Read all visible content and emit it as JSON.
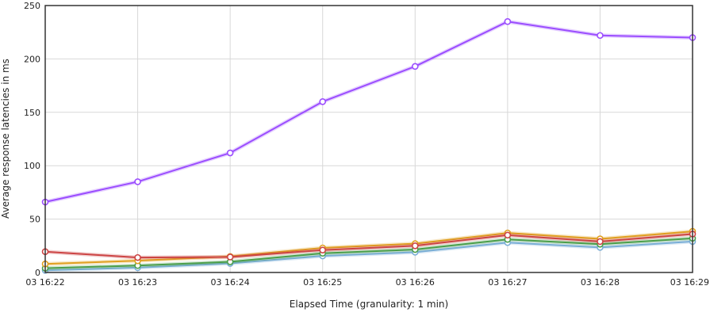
{
  "chart_data": {
    "type": "line",
    "xlabel": "Elapsed Time (granularity: 1 min)",
    "ylabel": "Average response latencies in ms",
    "categories": [
      "03 16:22",
      "03 16:23",
      "03 16:24",
      "03 16:25",
      "03 16:26",
      "03 16:27",
      "03 16:28",
      "03 16:29"
    ],
    "ylim": [
      0,
      250
    ],
    "yticks": [
      0,
      50,
      100,
      150,
      200,
      250
    ],
    "grid": true,
    "legend": "none",
    "series": [
      {
        "color": "#9b4dff",
        "values": [
          66,
          85,
          112,
          160,
          193,
          235,
          222,
          220
        ]
      },
      {
        "color": "#cc4444",
        "values": [
          19.5,
          14,
          14.5,
          21,
          25,
          35,
          29,
          36
        ]
      },
      {
        "color": "#e0a020",
        "values": [
          8,
          11,
          15,
          23,
          27,
          37,
          31.5,
          38.5
        ]
      },
      {
        "color": "#4a9e4a",
        "values": [
          4,
          6.5,
          10,
          18,
          21.5,
          31,
          26.5,
          32
        ]
      },
      {
        "color": "#7aaed6",
        "values": [
          2,
          4.5,
          8.5,
          15.5,
          19,
          28,
          23.5,
          29
        ]
      }
    ]
  }
}
